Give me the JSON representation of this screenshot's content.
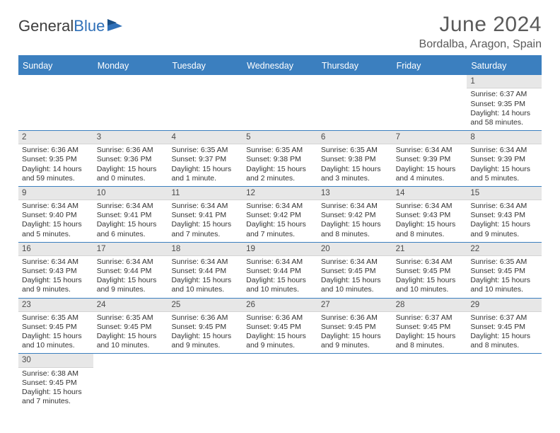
{
  "logo": {
    "text1": "General",
    "text2": "Blue"
  },
  "title": "June 2024",
  "location": "Bordalba, Aragon, Spain",
  "daynames": [
    "Sunday",
    "Monday",
    "Tuesday",
    "Wednesday",
    "Thursday",
    "Friday",
    "Saturday"
  ],
  "colors": {
    "header_bg": "#3b7fbf",
    "header_text": "#ffffff",
    "daynum_bg": "#e7e7e7",
    "border": "#3b7fbf"
  },
  "weeks": [
    [
      null,
      null,
      null,
      null,
      null,
      null,
      {
        "n": "1",
        "sr": "Sunrise: 6:37 AM",
        "ss": "Sunset: 9:35 PM",
        "dl": "Daylight: 14 hours and 58 minutes."
      }
    ],
    [
      {
        "n": "2",
        "sr": "Sunrise: 6:36 AM",
        "ss": "Sunset: 9:35 PM",
        "dl": "Daylight: 14 hours and 59 minutes."
      },
      {
        "n": "3",
        "sr": "Sunrise: 6:36 AM",
        "ss": "Sunset: 9:36 PM",
        "dl": "Daylight: 15 hours and 0 minutes."
      },
      {
        "n": "4",
        "sr": "Sunrise: 6:35 AM",
        "ss": "Sunset: 9:37 PM",
        "dl": "Daylight: 15 hours and 1 minute."
      },
      {
        "n": "5",
        "sr": "Sunrise: 6:35 AM",
        "ss": "Sunset: 9:38 PM",
        "dl": "Daylight: 15 hours and 2 minutes."
      },
      {
        "n": "6",
        "sr": "Sunrise: 6:35 AM",
        "ss": "Sunset: 9:38 PM",
        "dl": "Daylight: 15 hours and 3 minutes."
      },
      {
        "n": "7",
        "sr": "Sunrise: 6:34 AM",
        "ss": "Sunset: 9:39 PM",
        "dl": "Daylight: 15 hours and 4 minutes."
      },
      {
        "n": "8",
        "sr": "Sunrise: 6:34 AM",
        "ss": "Sunset: 9:39 PM",
        "dl": "Daylight: 15 hours and 5 minutes."
      }
    ],
    [
      {
        "n": "9",
        "sr": "Sunrise: 6:34 AM",
        "ss": "Sunset: 9:40 PM",
        "dl": "Daylight: 15 hours and 5 minutes."
      },
      {
        "n": "10",
        "sr": "Sunrise: 6:34 AM",
        "ss": "Sunset: 9:41 PM",
        "dl": "Daylight: 15 hours and 6 minutes."
      },
      {
        "n": "11",
        "sr": "Sunrise: 6:34 AM",
        "ss": "Sunset: 9:41 PM",
        "dl": "Daylight: 15 hours and 7 minutes."
      },
      {
        "n": "12",
        "sr": "Sunrise: 6:34 AM",
        "ss": "Sunset: 9:42 PM",
        "dl": "Daylight: 15 hours and 7 minutes."
      },
      {
        "n": "13",
        "sr": "Sunrise: 6:34 AM",
        "ss": "Sunset: 9:42 PM",
        "dl": "Daylight: 15 hours and 8 minutes."
      },
      {
        "n": "14",
        "sr": "Sunrise: 6:34 AM",
        "ss": "Sunset: 9:43 PM",
        "dl": "Daylight: 15 hours and 8 minutes."
      },
      {
        "n": "15",
        "sr": "Sunrise: 6:34 AM",
        "ss": "Sunset: 9:43 PM",
        "dl": "Daylight: 15 hours and 9 minutes."
      }
    ],
    [
      {
        "n": "16",
        "sr": "Sunrise: 6:34 AM",
        "ss": "Sunset: 9:43 PM",
        "dl": "Daylight: 15 hours and 9 minutes."
      },
      {
        "n": "17",
        "sr": "Sunrise: 6:34 AM",
        "ss": "Sunset: 9:44 PM",
        "dl": "Daylight: 15 hours and 9 minutes."
      },
      {
        "n": "18",
        "sr": "Sunrise: 6:34 AM",
        "ss": "Sunset: 9:44 PM",
        "dl": "Daylight: 15 hours and 10 minutes."
      },
      {
        "n": "19",
        "sr": "Sunrise: 6:34 AM",
        "ss": "Sunset: 9:44 PM",
        "dl": "Daylight: 15 hours and 10 minutes."
      },
      {
        "n": "20",
        "sr": "Sunrise: 6:34 AM",
        "ss": "Sunset: 9:45 PM",
        "dl": "Daylight: 15 hours and 10 minutes."
      },
      {
        "n": "21",
        "sr": "Sunrise: 6:34 AM",
        "ss": "Sunset: 9:45 PM",
        "dl": "Daylight: 15 hours and 10 minutes."
      },
      {
        "n": "22",
        "sr": "Sunrise: 6:35 AM",
        "ss": "Sunset: 9:45 PM",
        "dl": "Daylight: 15 hours and 10 minutes."
      }
    ],
    [
      {
        "n": "23",
        "sr": "Sunrise: 6:35 AM",
        "ss": "Sunset: 9:45 PM",
        "dl": "Daylight: 15 hours and 10 minutes."
      },
      {
        "n": "24",
        "sr": "Sunrise: 6:35 AM",
        "ss": "Sunset: 9:45 PM",
        "dl": "Daylight: 15 hours and 10 minutes."
      },
      {
        "n": "25",
        "sr": "Sunrise: 6:36 AM",
        "ss": "Sunset: 9:45 PM",
        "dl": "Daylight: 15 hours and 9 minutes."
      },
      {
        "n": "26",
        "sr": "Sunrise: 6:36 AM",
        "ss": "Sunset: 9:45 PM",
        "dl": "Daylight: 15 hours and 9 minutes."
      },
      {
        "n": "27",
        "sr": "Sunrise: 6:36 AM",
        "ss": "Sunset: 9:45 PM",
        "dl": "Daylight: 15 hours and 9 minutes."
      },
      {
        "n": "28",
        "sr": "Sunrise: 6:37 AM",
        "ss": "Sunset: 9:45 PM",
        "dl": "Daylight: 15 hours and 8 minutes."
      },
      {
        "n": "29",
        "sr": "Sunrise: 6:37 AM",
        "ss": "Sunset: 9:45 PM",
        "dl": "Daylight: 15 hours and 8 minutes."
      }
    ],
    [
      {
        "n": "30",
        "sr": "Sunrise: 6:38 AM",
        "ss": "Sunset: 9:45 PM",
        "dl": "Daylight: 15 hours and 7 minutes."
      },
      null,
      null,
      null,
      null,
      null,
      null
    ]
  ]
}
